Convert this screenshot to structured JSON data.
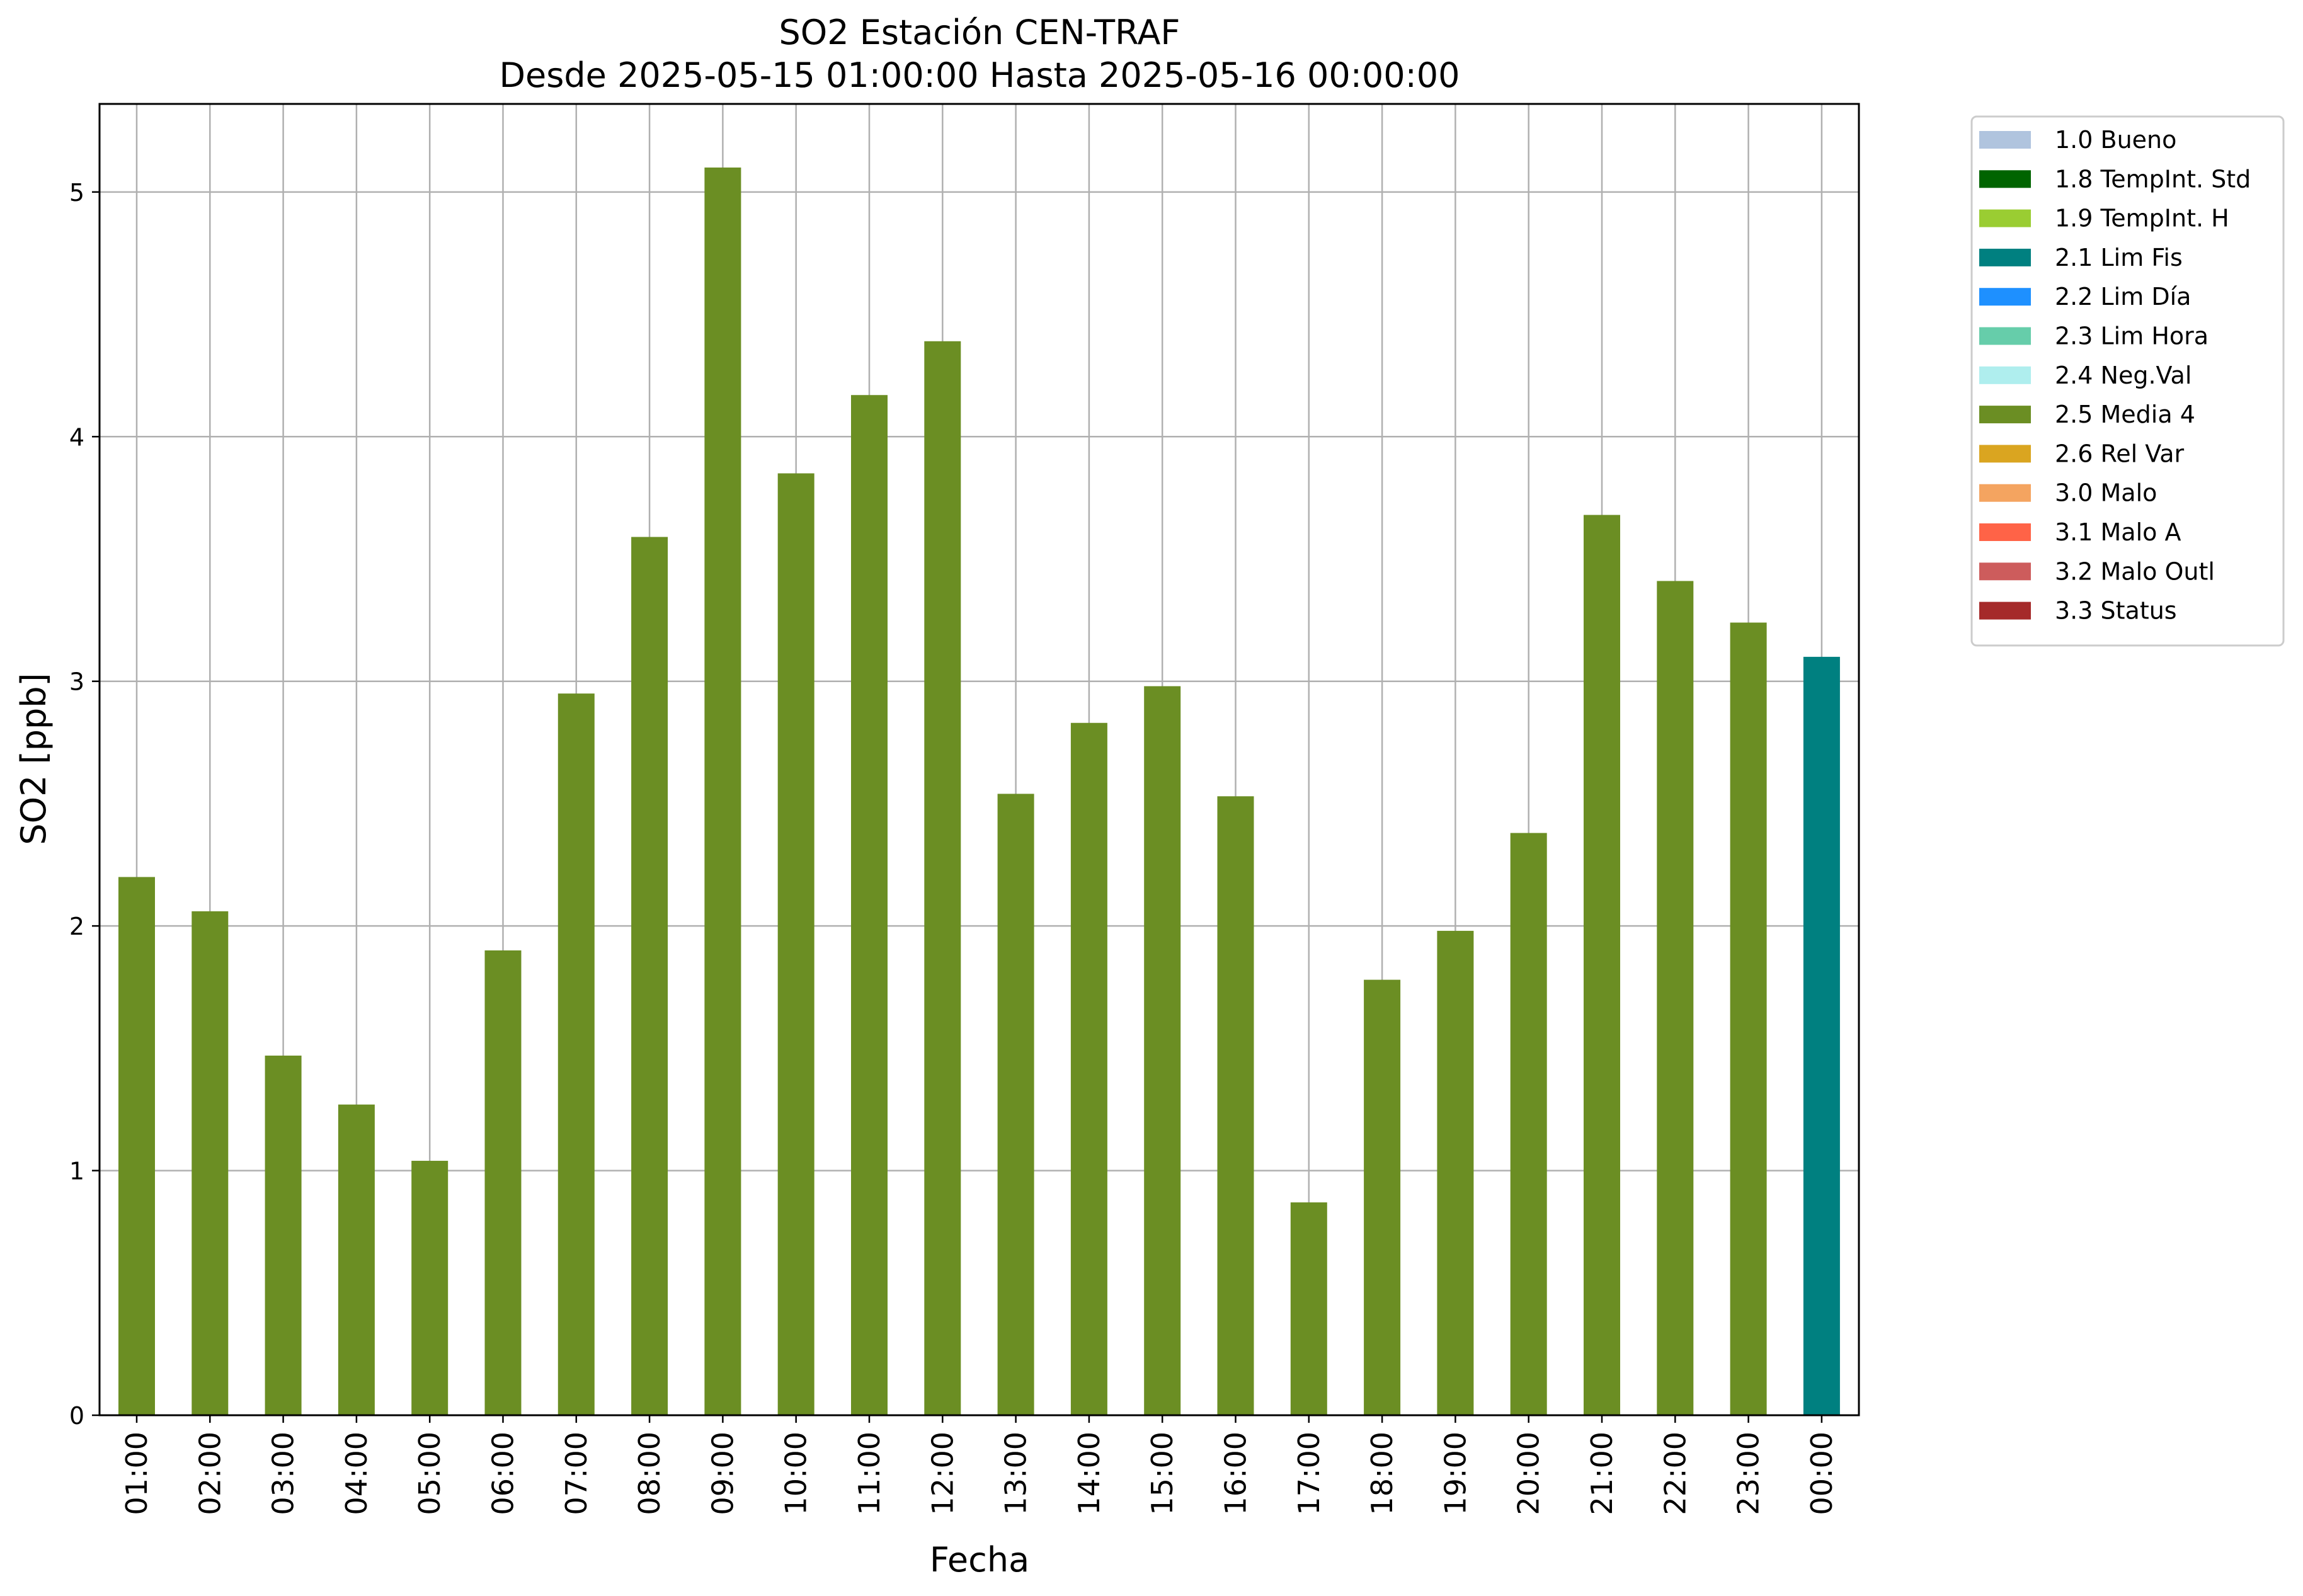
{
  "chart_data": {
    "type": "bar",
    "title": "SO2 Estación CEN-TRAF",
    "subtitle": "Desde 2025-05-15 01:00:00 Hasta 2025-05-16 00:00:00",
    "xlabel": "Fecha",
    "ylabel": "SO2 [ppb]",
    "ylim": [
      0,
      5.36
    ],
    "yticks": [
      0,
      1,
      2,
      3,
      4,
      5
    ],
    "grid": true,
    "legend_position": "outside-right-top",
    "categories": [
      "01:00",
      "02:00",
      "03:00",
      "04:00",
      "05:00",
      "06:00",
      "07:00",
      "08:00",
      "09:00",
      "10:00",
      "11:00",
      "12:00",
      "13:00",
      "14:00",
      "15:00",
      "16:00",
      "17:00",
      "18:00",
      "19:00",
      "20:00",
      "21:00",
      "22:00",
      "23:00",
      "00:00"
    ],
    "values": [
      2.2,
      2.06,
      1.47,
      1.27,
      1.04,
      1.9,
      2.95,
      3.59,
      5.1,
      3.85,
      4.17,
      4.39,
      2.54,
      2.83,
      2.98,
      2.53,
      0.87,
      1.78,
      1.98,
      2.38,
      3.68,
      3.41,
      3.24,
      3.1
    ],
    "bar_flags": [
      "2.5 Media 4",
      "2.5 Media 4",
      "2.5 Media 4",
      "2.5 Media 4",
      "2.5 Media 4",
      "2.5 Media 4",
      "2.5 Media 4",
      "2.5 Media 4",
      "2.5 Media 4",
      "2.5 Media 4",
      "2.5 Media 4",
      "2.5 Media 4",
      "2.5 Media 4",
      "2.5 Media 4",
      "2.5 Media 4",
      "2.5 Media 4",
      "2.5 Media 4",
      "2.5 Media 4",
      "2.5 Media 4",
      "2.5 Media 4",
      "2.5 Media 4",
      "2.5 Media 4",
      "2.5 Media 4",
      "2.1 Lim Fis"
    ],
    "legend": [
      {
        "label": "1.0 Bueno",
        "color": "#b0c4de"
      },
      {
        "label": "1.8 TempInt. Std",
        "color": "#006400"
      },
      {
        "label": "1.9 TempInt. H",
        "color": "#9acd32"
      },
      {
        "label": "2.1 Lim Fis",
        "color": "#008080"
      },
      {
        "label": "2.2 Lim Día",
        "color": "#1e90ff"
      },
      {
        "label": "2.3 Lim Hora",
        "color": "#66cdaa"
      },
      {
        "label": "2.4 Neg.Val",
        "color": "#afeeee"
      },
      {
        "label": "2.5 Media 4",
        "color": "#6b8e23"
      },
      {
        "label": "2.6 Rel Var",
        "color": "#daa520"
      },
      {
        "label": "3.0 Malo",
        "color": "#f4a460"
      },
      {
        "label": "3.1 Malo A",
        "color": "#ff6347"
      },
      {
        "label": "3.2 Malo Outl",
        "color": "#cd5c5c"
      },
      {
        "label": "3.3 Status",
        "color": "#a52a2a"
      }
    ]
  }
}
